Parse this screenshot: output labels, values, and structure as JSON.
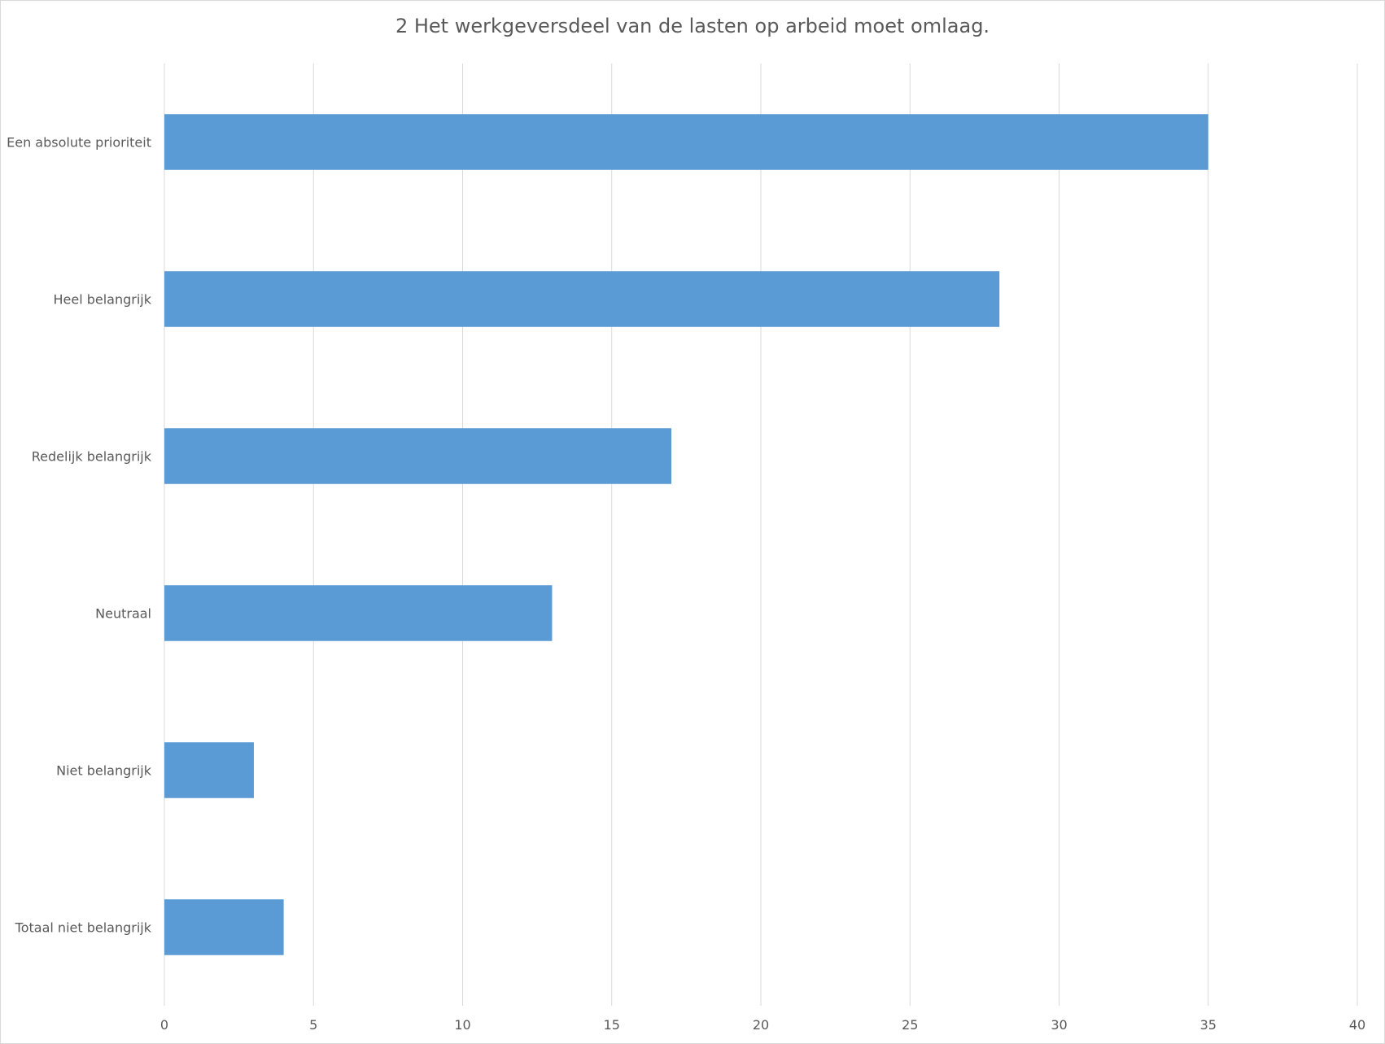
{
  "chart_data": {
    "type": "bar",
    "orientation": "horizontal",
    "title": "2 Het werkgeversdeel van de lasten op arbeid moet omlaag.",
    "categories": [
      "Een absolute prioriteit",
      "Heel belangrijk",
      "Redelijk belangrijk",
      "Neutraal",
      "Niet belangrijk",
      "Totaal niet belangrijk"
    ],
    "values": [
      35,
      28,
      17,
      13,
      3,
      4
    ],
    "xlim": [
      0,
      40
    ],
    "xticks": [
      0,
      5,
      10,
      15,
      20,
      25,
      30,
      35,
      40
    ],
    "xlabel": "",
    "ylabel": "",
    "grid": "vertical",
    "legend": "none",
    "bar_color": "#5b9bd5",
    "gridline_color": "#d9d9d9"
  }
}
